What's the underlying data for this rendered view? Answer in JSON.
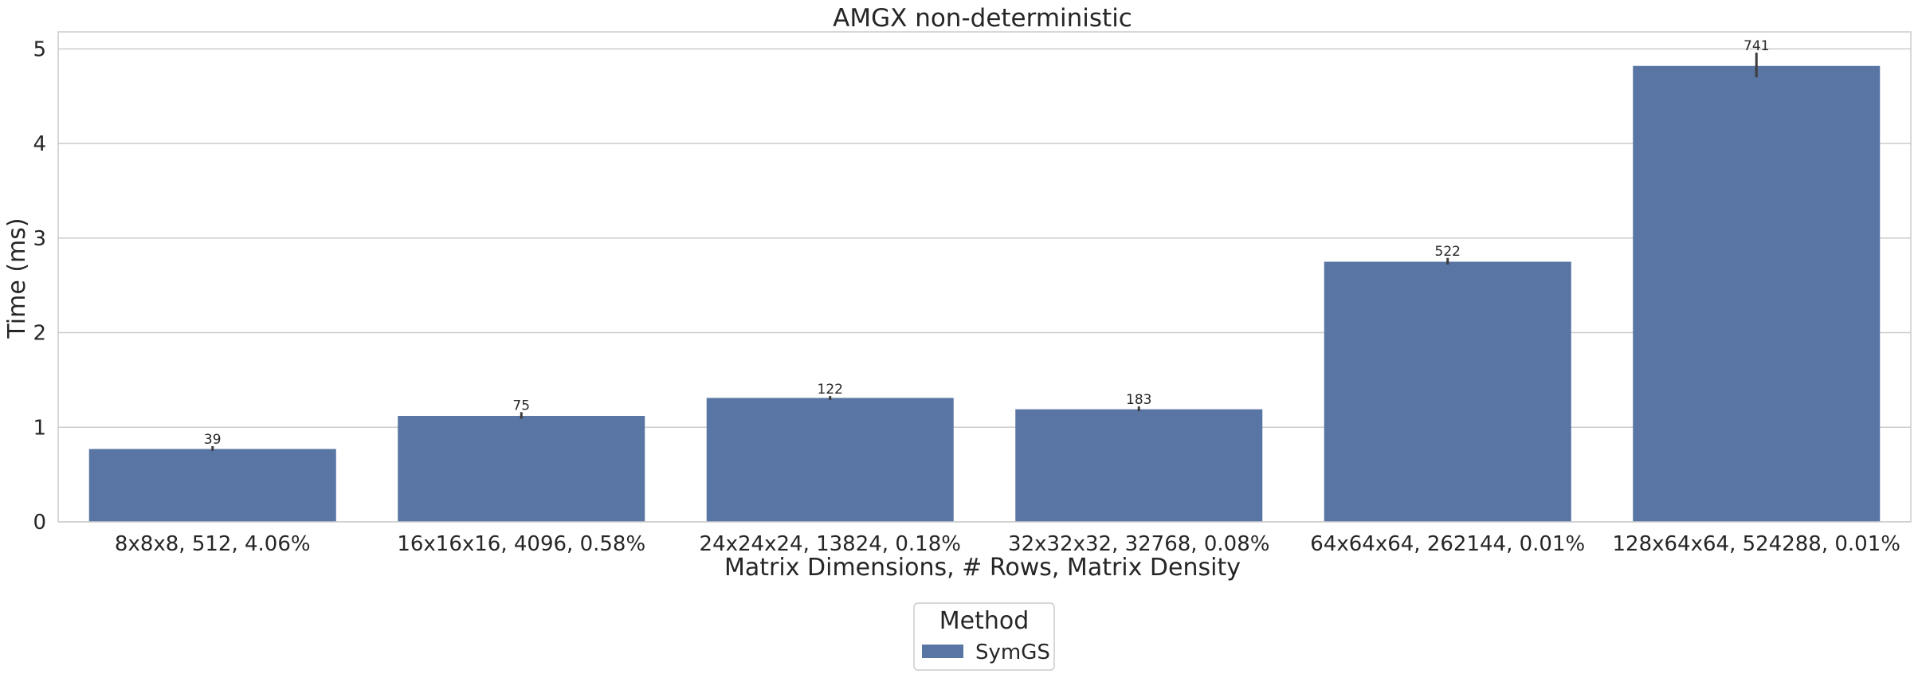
{
  "chart_data": {
    "type": "bar",
    "title": "AMGX non-deterministic",
    "xlabel": "Matrix Dimensions, # Rows, Matrix Density",
    "ylabel": "Time (ms)",
    "ylim": [
      0,
      5.18
    ],
    "yticks": [
      "0",
      "1",
      "2",
      "3",
      "4",
      "5"
    ],
    "grid": "horizontal",
    "legend_placement": "bottom-center",
    "legend_title": "Method",
    "categories": [
      "8x8x8, 512, 4.06%",
      "16x16x16, 4096, 0.58%",
      "24x24x24, 13824, 0.18%",
      "32x32x32, 32768, 0.08%",
      "64x64x64, 262144, 0.01%",
      "128x64x64, 524288, 0.01%"
    ],
    "series": [
      {
        "name": "SymGS",
        "color": "#5975a4",
        "values": [
          0.77,
          1.12,
          1.31,
          1.19,
          2.75,
          4.82
        ],
        "error_low": [
          0.75,
          1.09,
          1.29,
          1.17,
          2.72,
          4.7
        ],
        "error_high": [
          0.8,
          1.16,
          1.33,
          1.22,
          2.79,
          4.96
        ],
        "data_labels": [
          "39",
          "75",
          "122",
          "183",
          "522",
          "741"
        ]
      }
    ]
  }
}
